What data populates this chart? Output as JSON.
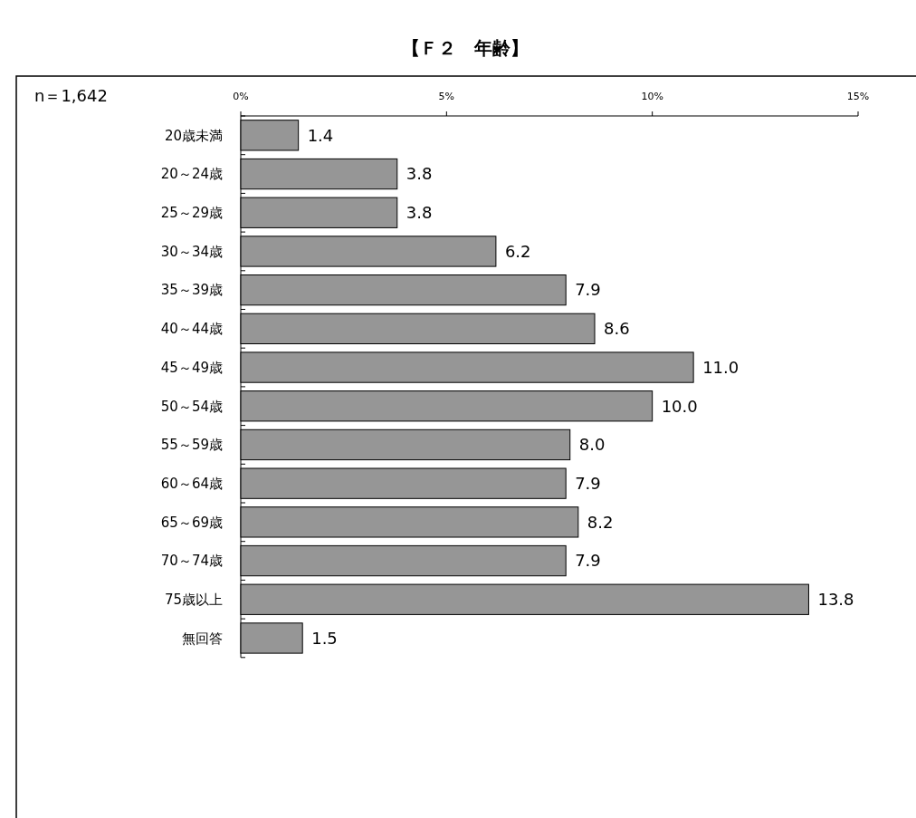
{
  "chart_data": {
    "type": "bar",
    "orientation": "horizontal",
    "title": "【Ｆ２　年齢】",
    "annotations": [
      "n＝1,642"
    ],
    "categories": [
      "20歳未満",
      "20～24歳",
      "25～29歳",
      "30～34歳",
      "35～39歳",
      "40～44歳",
      "45～49歳",
      "50～54歳",
      "55～59歳",
      "60～64歳",
      "65～69歳",
      "70～74歳",
      "75歳以上",
      "無回答"
    ],
    "values": [
      1.4,
      3.8,
      3.8,
      6.2,
      7.9,
      8.6,
      11.0,
      10.0,
      8.0,
      7.9,
      8.2,
      7.9,
      13.8,
      1.5
    ],
    "value_labels": [
      "1.4",
      "3.8",
      "3.8",
      "6.2",
      "7.9",
      "8.6",
      "11.0",
      "10.0",
      "8.0",
      "7.9",
      "8.2",
      "7.9",
      "13.8",
      "1.5"
    ],
    "color": "#969696",
    "xlim": [
      0,
      15
    ],
    "xticks": [
      {
        "value": 0,
        "label": "0%"
      },
      {
        "value": 5,
        "label": "5%"
      },
      {
        "value": 10,
        "label": "10%"
      },
      {
        "value": 15,
        "label": "15%"
      }
    ],
    "stacked": false
  }
}
